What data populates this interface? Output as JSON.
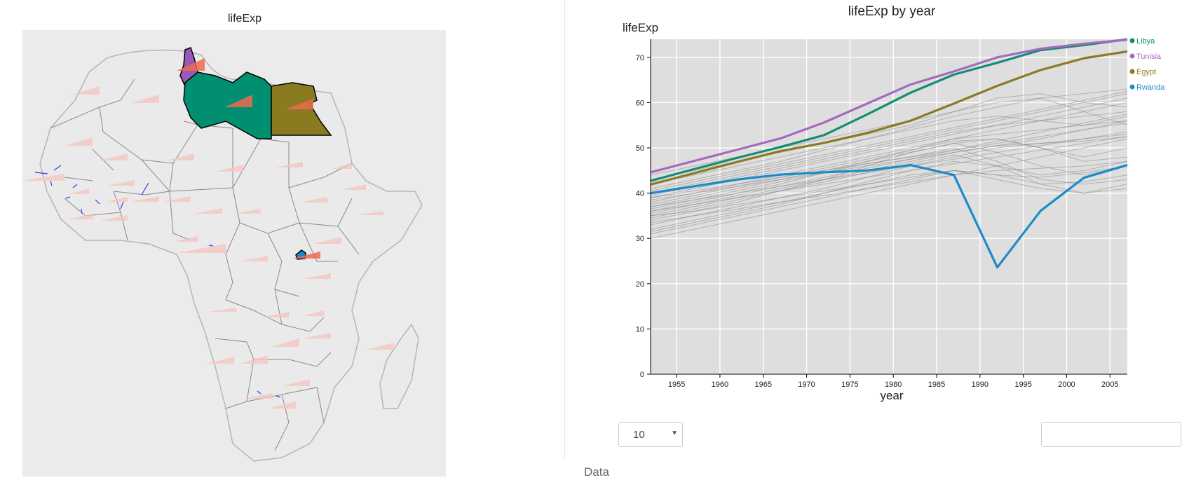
{
  "map": {
    "title": "lifeExp",
    "colors": {
      "background": "#ebebeb",
      "land": "#eaeaea",
      "border": "#888888",
      "sparkline": "#f4c7bd",
      "highlight_spark": "#ee6a4f"
    },
    "highlighted": [
      {
        "name": "Libya",
        "color": "#008f70",
        "icon": "libya-shape"
      },
      {
        "name": "Tunisia",
        "color": "#9b59b6",
        "icon": "tunisia-shape"
      },
      {
        "name": "Egypt",
        "color": "#8a7a20",
        "icon": "egypt-shape"
      },
      {
        "name": "Rwanda",
        "color": "#1588c9",
        "icon": "rwanda-shape"
      }
    ]
  },
  "chart_data": {
    "type": "line",
    "title": "lifeExp by year",
    "ylabel": "lifeExp",
    "xlabel": "year",
    "xlim": [
      1952,
      2007
    ],
    "ylim": [
      0,
      74
    ],
    "x_ticks": [
      1955,
      1960,
      1965,
      1970,
      1975,
      1980,
      1985,
      1990,
      1995,
      2000,
      2005
    ],
    "y_ticks": [
      0,
      10,
      20,
      30,
      40,
      50,
      60,
      70
    ],
    "x": [
      1952,
      1957,
      1962,
      1967,
      1972,
      1977,
      1982,
      1987,
      1992,
      1997,
      2002,
      2007
    ],
    "grid": true,
    "legend_position": "right",
    "series": [
      {
        "name": "Libya",
        "color": "#138d75",
        "values": [
          42.7,
          45.3,
          47.8,
          50.2,
          52.8,
          57.4,
          62.2,
          66.2,
          68.8,
          71.6,
          72.7,
          74.0
        ]
      },
      {
        "name": "Tunisia",
        "color": "#a569bd",
        "values": [
          44.6,
          47.1,
          49.6,
          52.1,
          55.6,
          59.8,
          64.0,
          66.9,
          70.0,
          71.9,
          73.0,
          73.9
        ]
      },
      {
        "name": "Egypt",
        "color": "#8c7a23",
        "values": [
          41.9,
          44.4,
          46.9,
          49.3,
          51.1,
          53.3,
          56.0,
          59.8,
          63.7,
          67.2,
          69.8,
          71.3
        ]
      },
      {
        "name": "Rwanda",
        "color": "#1b8bca",
        "values": [
          40.0,
          41.5,
          43.0,
          44.1,
          44.6,
          45.0,
          46.2,
          44.0,
          23.6,
          36.1,
          43.4,
          46.2
        ]
      }
    ],
    "background_series": [
      [
        30.0,
        32.0,
        34.0,
        36.0,
        38.0,
        40.0,
        42.0,
        44.0,
        46.0,
        48.0,
        50.0,
        52.0
      ],
      [
        31.5,
        33.5,
        35.5,
        37.5,
        40.0,
        42.0,
        44.0,
        45.0,
        44.0,
        42.0,
        42.5,
        44.0
      ],
      [
        33.0,
        35.0,
        37.0,
        39.0,
        41.0,
        43.5,
        46.0,
        48.0,
        50.0,
        51.0,
        52.0,
        53.0
      ],
      [
        34.0,
        36.0,
        38.0,
        40.5,
        43.0,
        46.0,
        49.0,
        51.0,
        52.0,
        50.0,
        48.0,
        50.0
      ],
      [
        35.0,
        37.0,
        39.0,
        41.0,
        43.0,
        45.0,
        47.0,
        49.0,
        50.5,
        52.0,
        54.0,
        56.0
      ],
      [
        36.0,
        38.0,
        40.0,
        42.0,
        44.5,
        47.0,
        49.5,
        52.0,
        54.0,
        56.0,
        58.0,
        60.0
      ],
      [
        37.0,
        39.0,
        41.0,
        43.0,
        45.0,
        47.0,
        49.0,
        51.0,
        49.0,
        46.0,
        44.0,
        46.0
      ],
      [
        38.0,
        40.0,
        42.0,
        44.0,
        46.0,
        48.0,
        50.0,
        52.0,
        53.0,
        54.0,
        55.0,
        56.0
      ],
      [
        39.0,
        41.0,
        43.0,
        45.0,
        47.0,
        49.0,
        51.0,
        53.0,
        55.0,
        57.0,
        59.0,
        61.0
      ],
      [
        32.0,
        34.0,
        36.0,
        38.0,
        40.0,
        42.5,
        45.0,
        47.0,
        46.0,
        44.0,
        45.0,
        47.0
      ],
      [
        40.0,
        42.0,
        44.0,
        46.0,
        48.0,
        50.0,
        52.0,
        54.0,
        56.0,
        58.0,
        60.0,
        62.0
      ],
      [
        41.0,
        43.0,
        45.0,
        47.0,
        49.5,
        52.0,
        54.5,
        57.0,
        59.0,
        61.0,
        62.0,
        63.0
      ],
      [
        36.5,
        38.5,
        40.5,
        42.5,
        44.5,
        46.5,
        48.0,
        50.0,
        47.0,
        43.0,
        42.0,
        43.0
      ],
      [
        35.5,
        37.5,
        39.5,
        41.5,
        43.5,
        45.5,
        47.5,
        49.5,
        51.5,
        53.5,
        55.5,
        57.5
      ],
      [
        33.5,
        35.0,
        36.5,
        38.0,
        39.5,
        41.0,
        42.5,
        44.0,
        45.0,
        45.5,
        46.0,
        47.0
      ],
      [
        42.0,
        44.0,
        46.0,
        48.0,
        50.0,
        52.0,
        54.0,
        56.0,
        57.0,
        56.0,
        55.0,
        57.0
      ],
      [
        37.5,
        39.5,
        41.5,
        43.5,
        45.5,
        47.5,
        49.5,
        51.5,
        52.0,
        50.0,
        47.0,
        48.0
      ],
      [
        39.5,
        41.5,
        43.5,
        45.5,
        47.5,
        49.5,
        51.5,
        53.5,
        55.0,
        56.0,
        57.0,
        58.0
      ],
      [
        34.5,
        36.5,
        38.5,
        40.5,
        42.5,
        44.5,
        46.5,
        48.5,
        46.0,
        42.0,
        40.0,
        41.0
      ],
      [
        43.0,
        45.0,
        47.0,
        49.0,
        51.0,
        53.0,
        55.0,
        58.0,
        61.0,
        62.0,
        60.0,
        59.0
      ],
      [
        38.5,
        40.0,
        41.5,
        43.0,
        44.5,
        46.0,
        47.5,
        49.0,
        50.5,
        51.0,
        51.5,
        52.5
      ],
      [
        36.0,
        37.5,
        39.0,
        40.5,
        42.0,
        43.5,
        45.0,
        46.5,
        48.0,
        49.5,
        51.0,
        52.5
      ],
      [
        40.5,
        42.5,
        44.5,
        46.5,
        48.5,
        50.5,
        52.5,
        54.5,
        56.5,
        58.5,
        60.5,
        62.5
      ],
      [
        31.0,
        33.0,
        35.0,
        37.0,
        39.0,
        41.0,
        43.0,
        45.0,
        43.0,
        41.0,
        40.0,
        42.0
      ],
      [
        44.0,
        46.0,
        48.0,
        50.0,
        52.0,
        54.0,
        56.0,
        58.0,
        60.0,
        61.0,
        58.0,
        55.0
      ],
      [
        37.0,
        38.5,
        40.0,
        41.5,
        43.0,
        44.5,
        46.0,
        47.5,
        49.0,
        50.5,
        52.0,
        53.5
      ],
      [
        35.0,
        36.0,
        37.5,
        39.0,
        40.5,
        42.0,
        43.5,
        45.0,
        44.0,
        43.5,
        44.5,
        46.0
      ],
      [
        39.0,
        40.5,
        42.0,
        43.5,
        45.0,
        46.5,
        48.0,
        49.5,
        51.0,
        52.5,
        54.0,
        55.5
      ]
    ]
  },
  "controls": {
    "page_size": "10",
    "search_value": "",
    "data_label": "Data"
  }
}
